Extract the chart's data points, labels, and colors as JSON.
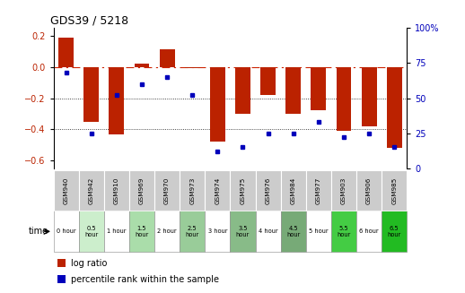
{
  "title": "GDS39 / 5218",
  "samples": [
    "GSM940",
    "GSM942",
    "GSM910",
    "GSM969",
    "GSM970",
    "GSM973",
    "GSM974",
    "GSM975",
    "GSM976",
    "GSM984",
    "GSM977",
    "GSM903",
    "GSM906",
    "GSM985"
  ],
  "times": [
    "0 hour",
    "0.5\nhour",
    "1 hour",
    "1.5\nhour",
    "2 hour",
    "2.5\nhour",
    "3 hour",
    "3.5\nhour",
    "4 hour",
    "4.5\nhour",
    "5 hour",
    "5.5\nhour",
    "6 hour",
    "6.5\nhour"
  ],
  "log_ratio": [
    0.19,
    -0.35,
    -0.43,
    0.02,
    0.11,
    -0.01,
    -0.48,
    -0.3,
    -0.18,
    -0.3,
    -0.28,
    -0.41,
    -0.38,
    -0.52
  ],
  "percentile": [
    68,
    25,
    52,
    60,
    65,
    52,
    12,
    15,
    25,
    25,
    33,
    22,
    25,
    15
  ],
  "ylim_left": [
    -0.65,
    0.25
  ],
  "ylim_right": [
    0,
    100
  ],
  "yticks_left": [
    -0.6,
    -0.4,
    -0.2,
    0.0,
    0.2
  ],
  "yticks_right": [
    0,
    25,
    50,
    75,
    100
  ],
  "hlines": [
    -0.2,
    -0.4
  ],
  "bar_color": "#bb2200",
  "dot_color": "#0000bb",
  "zero_line_color": "#cc2200",
  "bg_color": "#ffffff",
  "grid_color": "#111111",
  "gray_cell_color": "#cccccc",
  "time_bg": [
    "#ffffff",
    "#cceecc",
    "#ffffff",
    "#aaddaa",
    "#ffffff",
    "#99cc99",
    "#ffffff",
    "#88bb88",
    "#ffffff",
    "#77aa77",
    "#ffffff",
    "#44cc44",
    "#ffffff",
    "#22bb22"
  ],
  "legend_log": "log ratio",
  "legend_pct": "percentile rank within the sample"
}
